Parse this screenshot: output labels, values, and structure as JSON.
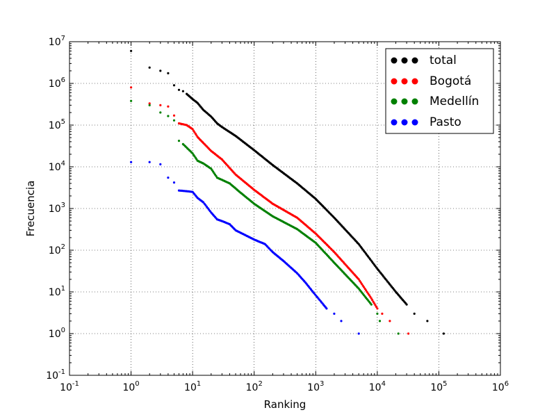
{
  "chart_data": {
    "type": "scatter",
    "title": "",
    "xlabel": "Ranking",
    "ylabel": "Frecuencia",
    "xscale": "log",
    "yscale": "log",
    "xlim": [
      0.1,
      1000000
    ],
    "ylim": [
      0.1,
      10000000
    ],
    "grid": true,
    "legend_position": "top-right",
    "x_ticks": [
      {
        "base": "10",
        "exp": "-1"
      },
      {
        "base": "10",
        "exp": "0"
      },
      {
        "base": "10",
        "exp": "1"
      },
      {
        "base": "10",
        "exp": "2"
      },
      {
        "base": "10",
        "exp": "3"
      },
      {
        "base": "10",
        "exp": "4"
      },
      {
        "base": "10",
        "exp": "5"
      },
      {
        "base": "10",
        "exp": "6"
      }
    ],
    "y_ticks": [
      {
        "base": "10",
        "exp": "-1"
      },
      {
        "base": "10",
        "exp": "0"
      },
      {
        "base": "10",
        "exp": "1"
      },
      {
        "base": "10",
        "exp": "2"
      },
      {
        "base": "10",
        "exp": "3"
      },
      {
        "base": "10",
        "exp": "4"
      },
      {
        "base": "10",
        "exp": "5"
      },
      {
        "base": "10",
        "exp": "6"
      },
      {
        "base": "10",
        "exp": "7"
      }
    ],
    "series": [
      {
        "name": "total",
        "color": "#000000",
        "points": [
          [
            1,
            6000000
          ],
          [
            2,
            2400000
          ],
          [
            3,
            2000000
          ],
          [
            4,
            1750000
          ],
          [
            5,
            900000
          ],
          [
            6,
            700000
          ],
          [
            7,
            650000
          ],
          [
            8,
            560000
          ],
          [
            10,
            420000
          ],
          [
            12,
            340000
          ],
          [
            15,
            230000
          ],
          [
            20,
            160000
          ],
          [
            25,
            110000
          ],
          [
            30,
            90000
          ],
          [
            50,
            55000
          ],
          [
            100,
            25000
          ],
          [
            200,
            11000
          ],
          [
            500,
            4000
          ],
          [
            1000,
            1700
          ],
          [
            2000,
            600
          ],
          [
            5000,
            140
          ],
          [
            10000,
            36
          ],
          [
            20000,
            10
          ],
          [
            30000,
            5
          ],
          [
            40000,
            3
          ],
          [
            65000,
            2
          ],
          [
            120000,
            1
          ]
        ]
      },
      {
        "name": "Bogotá",
        "color": "#ff0000",
        "points": [
          [
            1,
            800000
          ],
          [
            2,
            330000
          ],
          [
            3,
            300000
          ],
          [
            4,
            280000
          ],
          [
            5,
            170000
          ],
          [
            6,
            110000
          ],
          [
            8,
            100000
          ],
          [
            10,
            80000
          ],
          [
            12,
            52000
          ],
          [
            15,
            37000
          ],
          [
            20,
            24000
          ],
          [
            30,
            15000
          ],
          [
            50,
            6500
          ],
          [
            100,
            2800
          ],
          [
            200,
            1300
          ],
          [
            500,
            600
          ],
          [
            1000,
            250
          ],
          [
            2000,
            90
          ],
          [
            5000,
            20
          ],
          [
            8000,
            7
          ],
          [
            10000,
            4
          ],
          [
            12000,
            3
          ],
          [
            16000,
            2
          ],
          [
            32000,
            1
          ]
        ]
      },
      {
        "name": "Medellín",
        "color": "#008000",
        "points": [
          [
            1,
            380000
          ],
          [
            2,
            300000
          ],
          [
            3,
            200000
          ],
          [
            4,
            165000
          ],
          [
            5,
            130000
          ],
          [
            6,
            42000
          ],
          [
            7,
            35000
          ],
          [
            10,
            21000
          ],
          [
            12,
            14000
          ],
          [
            15,
            12000
          ],
          [
            20,
            9000
          ],
          [
            25,
            5500
          ],
          [
            40,
            4000
          ],
          [
            60,
            2400
          ],
          [
            100,
            1300
          ],
          [
            200,
            650
          ],
          [
            500,
            320
          ],
          [
            1000,
            150
          ],
          [
            2000,
            50
          ],
          [
            5000,
            12
          ],
          [
            8000,
            5
          ],
          [
            10000,
            3
          ],
          [
            11000,
            2
          ],
          [
            22000,
            1
          ]
        ]
      },
      {
        "name": "Pasto",
        "color": "#0000ff",
        "points": [
          [
            1,
            13000
          ],
          [
            2,
            13000
          ],
          [
            3,
            11500
          ],
          [
            4,
            5500
          ],
          [
            5,
            4200
          ],
          [
            6,
            2700
          ],
          [
            8,
            2600
          ],
          [
            10,
            2500
          ],
          [
            12,
            1800
          ],
          [
            15,
            1400
          ],
          [
            20,
            800
          ],
          [
            25,
            550
          ],
          [
            30,
            500
          ],
          [
            40,
            420
          ],
          [
            50,
            300
          ],
          [
            100,
            180
          ],
          [
            150,
            140
          ],
          [
            200,
            90
          ],
          [
            300,
            55
          ],
          [
            500,
            28
          ],
          [
            700,
            16
          ],
          [
            900,
            10
          ],
          [
            1200,
            6
          ],
          [
            1500,
            4
          ],
          [
            2000,
            3
          ],
          [
            2600,
            2
          ],
          [
            5000,
            1
          ]
        ]
      }
    ]
  }
}
